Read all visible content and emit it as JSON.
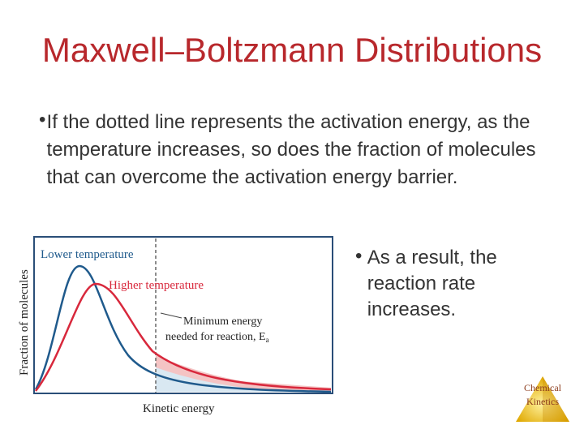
{
  "slide": {
    "title": "Maxwell–Boltzmann Distributions",
    "bullet_main": "If the dotted line represents the activation energy, as the temperature increases, so does the fraction of molecules that can overcome the activation energy barrier.",
    "bullet_right": "As a result, the reaction rate increases.",
    "bullet_symbol": "•"
  },
  "figure": {
    "y_axis_label": "Fraction of molecules",
    "x_axis_label": "Kinetic energy",
    "label_lower": "Lower temperature",
    "label_higher": "Higher temperature",
    "label_min_line1": "Minimum energy",
    "label_min_line2": "needed for reaction, E",
    "label_min_sub": "a",
    "colors": {
      "lower": "#1f5a8c",
      "higher": "#d8283c",
      "shade_lower": "#d9e8f2",
      "shade_higher": "#f4c4c4",
      "frame": "#2a4e78"
    }
  },
  "logo": {
    "line1": "Chemical",
    "line2": "Kinetics"
  }
}
